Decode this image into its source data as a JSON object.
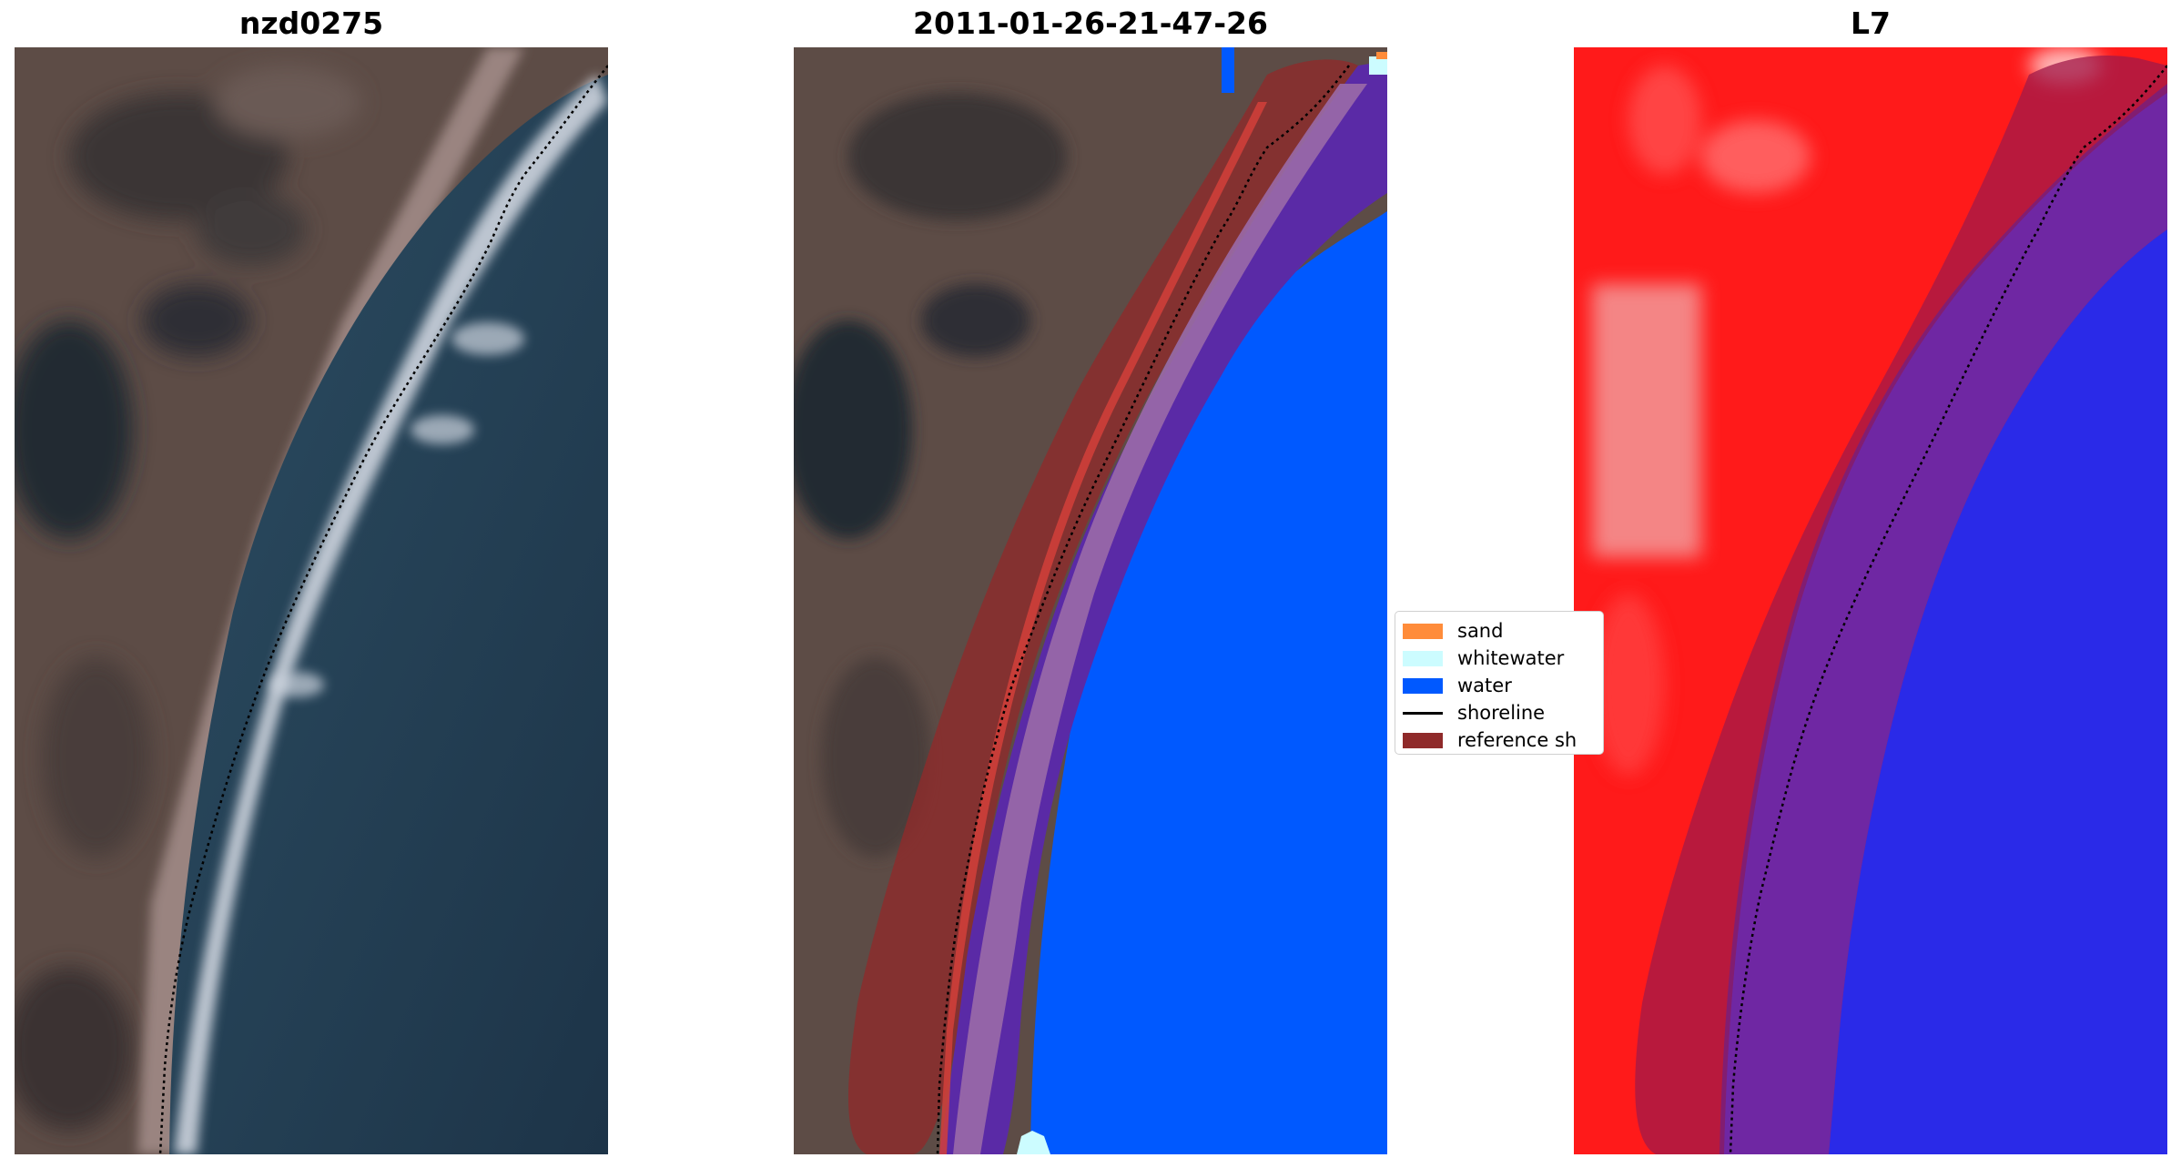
{
  "panels": [
    {
      "id": "rgb",
      "title": "nzd0275"
    },
    {
      "id": "classified",
      "title": "2011-01-26-21-47-26"
    },
    {
      "id": "index",
      "title": "L7"
    }
  ],
  "legend": {
    "items": [
      {
        "label": "sand",
        "kind": "patch",
        "color": "#ff8c3a"
      },
      {
        "label": "whitewater",
        "kind": "patch",
        "color": "#ccfcff"
      },
      {
        "label": "water",
        "kind": "patch",
        "color": "#0059ff"
      },
      {
        "label": "shoreline",
        "kind": "line",
        "color": "#000000"
      },
      {
        "label": "reference sh",
        "kind": "patch",
        "color": "#8f2a2a"
      }
    ]
  },
  "colors": {
    "water_class": "#0059ff",
    "whitewater_class": "#ccfcff",
    "sand_class": "#ff8c3a",
    "reference_buffer": "#8f2a2a",
    "index_land": "#ff1a1a",
    "index_water": "#2a2ae8"
  }
}
